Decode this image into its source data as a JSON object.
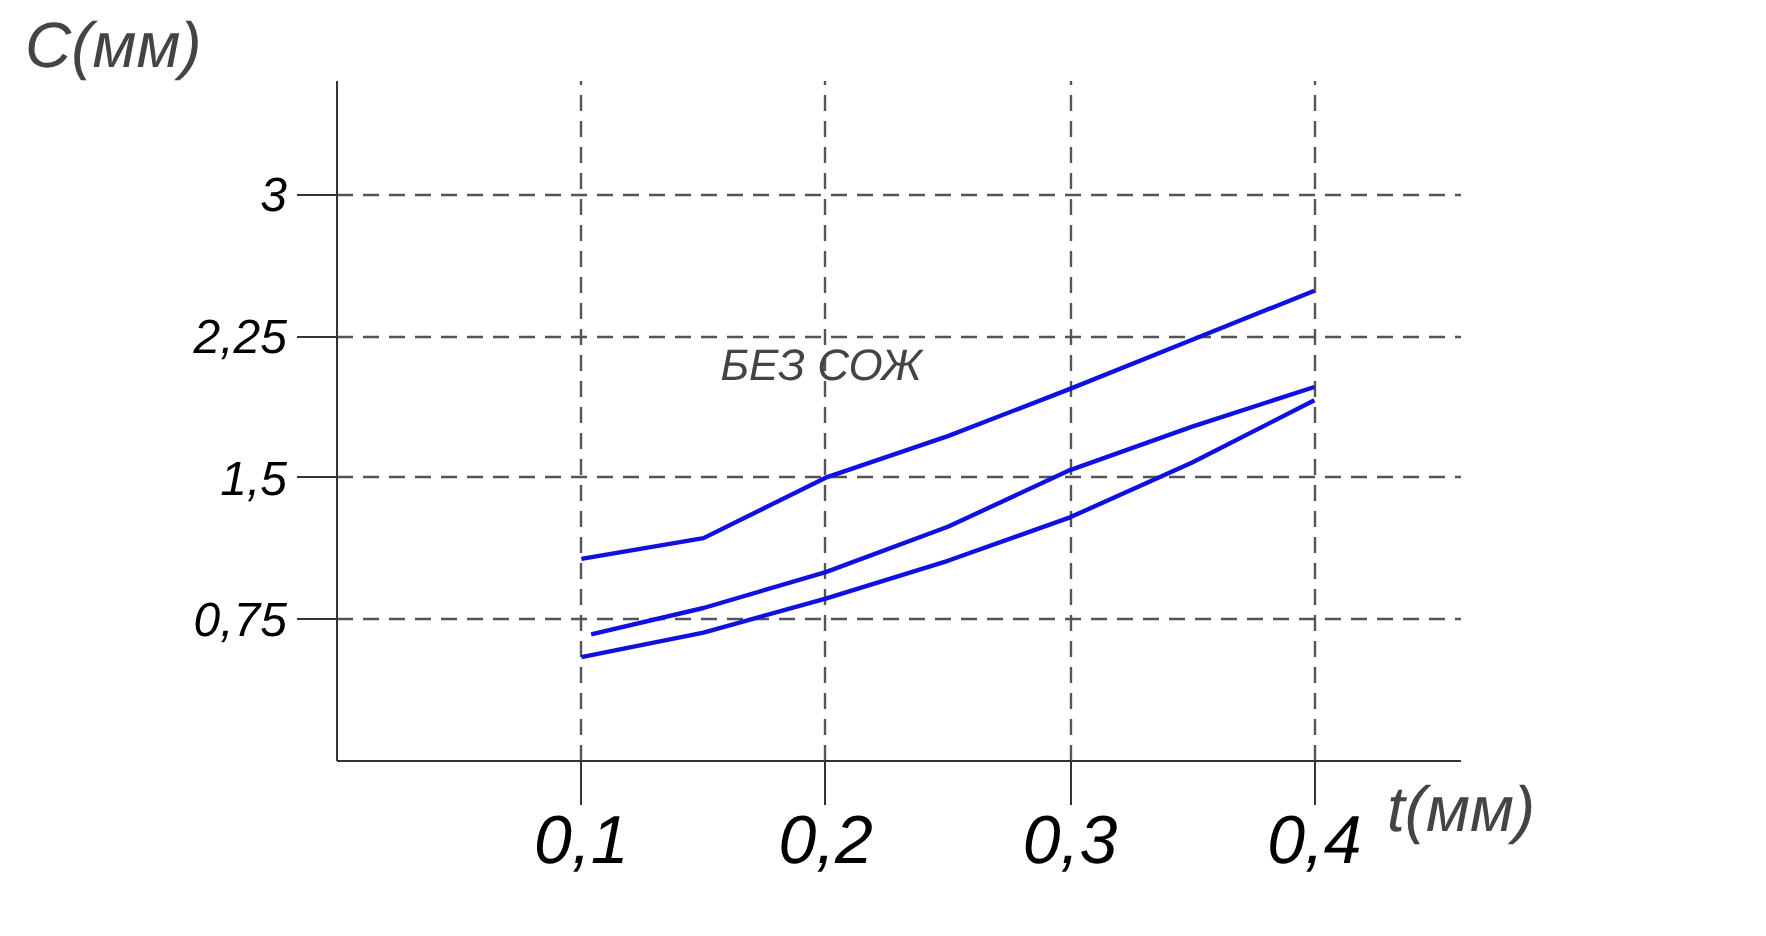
{
  "chart_data": {
    "type": "line",
    "xlabel": "t(мм)",
    "ylabel": "C(мм)",
    "xlim": [
      0,
      0.46
    ],
    "ylim": [
      0,
      3.6
    ],
    "xticks": [
      {
        "value": 0.1,
        "label": "0,1"
      },
      {
        "value": 0.2,
        "label": "0,2"
      },
      {
        "value": 0.3,
        "label": "0,3"
      },
      {
        "value": 0.4,
        "label": "0,4"
      }
    ],
    "yticks": [
      {
        "value": 0.75,
        "label": "0,75"
      },
      {
        "value": 1.5,
        "label": "1,5"
      },
      {
        "value": 2.25,
        "label": "2,25"
      },
      {
        "value": 3,
        "label": "3"
      }
    ],
    "grid": true,
    "line_style": "solid",
    "marker": "none",
    "annotations": [
      "БЕЗ СОЖ"
    ],
    "series": [
      {
        "color": "#1010e0",
        "x": [
          0.1,
          0.15,
          0.2,
          0.25,
          0.3,
          0.35,
          0.4
        ],
        "values": [
          1.07,
          1.18,
          1.5,
          1.72,
          1.97,
          2.23,
          2.49
        ]
      },
      {
        "color": "#1010e0",
        "x": [
          0.104,
          0.15,
          0.2,
          0.25,
          0.3,
          0.35,
          0.4
        ],
        "values": [
          0.67,
          0.81,
          1.0,
          1.24,
          1.54,
          1.77,
          1.98
        ]
      },
      {
        "color": "#1010e0",
        "x": [
          0.1,
          0.15,
          0.2,
          0.25,
          0.3,
          0.35,
          0.4
        ],
        "values": [
          0.55,
          0.68,
          0.86,
          1.06,
          1.29,
          1.58,
          1.91
        ]
      }
    ]
  }
}
